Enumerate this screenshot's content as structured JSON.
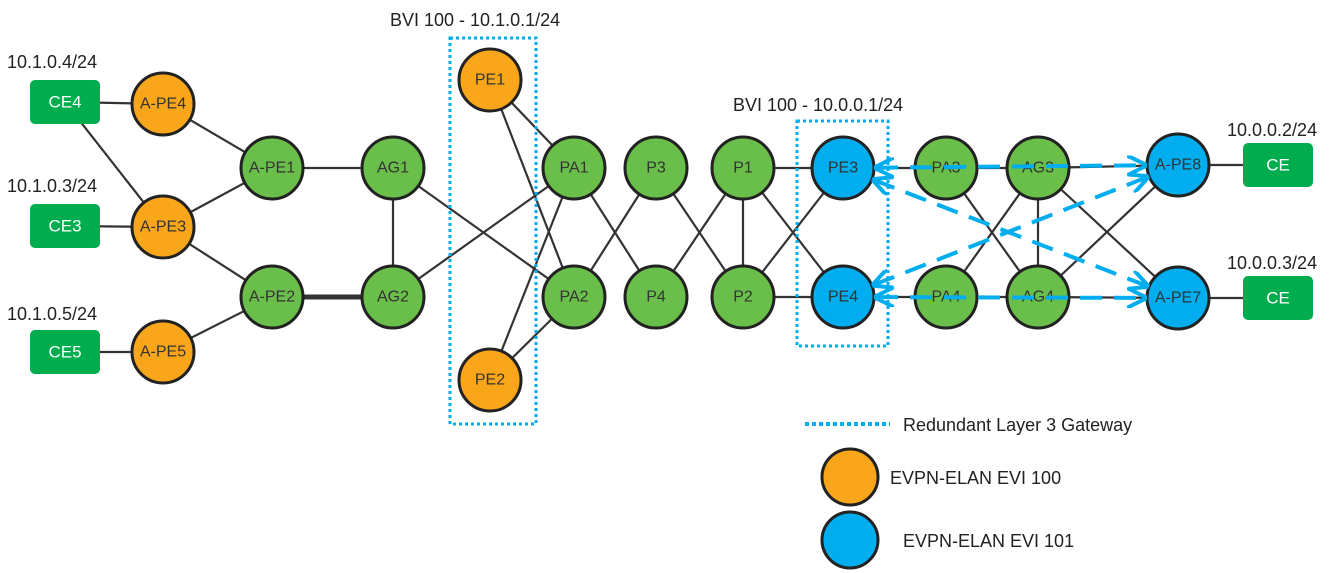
{
  "colors": {
    "evi100": "#FAA61A",
    "evi101": "#00AEEF",
    "transit": "#6ABF4B",
    "ce": "#00AD4E",
    "link": "#333333",
    "gateway": "#00AEEF"
  },
  "labels": {
    "ip_ce4": "10.1.0.4/24",
    "ip_ce3": "10.1.0.3/24",
    "ip_ce5": "10.1.0.5/24",
    "bvi_left": "BVI 100 - 10.1.0.1/24",
    "bvi_right": "BVI 100 - 10.0.0.1/24",
    "ip_ce_top": "10.0.0.2/24",
    "ip_ce_bottom": "10.0.0.3/24"
  },
  "nodes": [
    {
      "id": "CE4",
      "label": "CE4",
      "kind": "ce"
    },
    {
      "id": "CE3",
      "label": "CE3",
      "kind": "ce"
    },
    {
      "id": "CE5",
      "label": "CE5",
      "kind": "ce"
    },
    {
      "id": "APE4",
      "label": "A-PE4",
      "kind": "evi100"
    },
    {
      "id": "APE3",
      "label": "A-PE3",
      "kind": "evi100"
    },
    {
      "id": "APE5",
      "label": "A-PE5",
      "kind": "evi100"
    },
    {
      "id": "APE1",
      "label": "A-PE1",
      "kind": "transit"
    },
    {
      "id": "APE2",
      "label": "A-PE2",
      "kind": "transit"
    },
    {
      "id": "AG1",
      "label": "AG1",
      "kind": "transit"
    },
    {
      "id": "AG2",
      "label": "AG2",
      "kind": "transit"
    },
    {
      "id": "PE1",
      "label": "PE1",
      "kind": "evi100"
    },
    {
      "id": "PE2",
      "label": "PE2",
      "kind": "evi100"
    },
    {
      "id": "PA1",
      "label": "PA1",
      "kind": "transit"
    },
    {
      "id": "PA2",
      "label": "PA2",
      "kind": "transit"
    },
    {
      "id": "P3",
      "label": "P3",
      "kind": "transit"
    },
    {
      "id": "P4",
      "label": "P4",
      "kind": "transit"
    },
    {
      "id": "P1",
      "label": "P1",
      "kind": "transit"
    },
    {
      "id": "P2",
      "label": "P2",
      "kind": "transit"
    },
    {
      "id": "PE3",
      "label": "PE3",
      "kind": "evi101"
    },
    {
      "id": "PE4",
      "label": "PE4",
      "kind": "evi101"
    },
    {
      "id": "PA3",
      "label": "PA3",
      "kind": "transit"
    },
    {
      "id": "PA4",
      "label": "PA4",
      "kind": "transit"
    },
    {
      "id": "AG3",
      "label": "AG3",
      "kind": "transit"
    },
    {
      "id": "AG4",
      "label": "AG4",
      "kind": "transit"
    },
    {
      "id": "APE8",
      "label": "A-PE8",
      "kind": "evi101"
    },
    {
      "id": "APE7",
      "label": "A-PE7",
      "kind": "evi101"
    },
    {
      "id": "CER1",
      "label": "CE",
      "kind": "ce"
    },
    {
      "id": "CER2",
      "label": "CE",
      "kind": "ce"
    }
  ],
  "links": [
    [
      "CE4",
      "APE4"
    ],
    [
      "CE4",
      "APE3"
    ],
    [
      "CE3",
      "APE3"
    ],
    [
      "CE5",
      "APE5"
    ],
    [
      "APE4",
      "APE1"
    ],
    [
      "APE3",
      "APE1"
    ],
    [
      "APE3",
      "APE2"
    ],
    [
      "APE5",
      "APE2"
    ],
    [
      "APE1",
      "AG1"
    ],
    [
      "APE2",
      "AG2",
      "thick"
    ],
    [
      "AG1",
      "AG2"
    ],
    [
      "AG1",
      "PA2"
    ],
    [
      "AG2",
      "PA1"
    ],
    [
      "PE1",
      "PA1"
    ],
    [
      "PE1",
      "PA2"
    ],
    [
      "PE2",
      "PA1"
    ],
    [
      "PE2",
      "PA2"
    ],
    [
      "PA1",
      "P4"
    ],
    [
      "PA2",
      "P3"
    ],
    [
      "P3",
      "P2"
    ],
    [
      "P4",
      "P1"
    ],
    [
      "P1",
      "P2"
    ],
    [
      "P1",
      "PE3"
    ],
    [
      "P1",
      "PE4"
    ],
    [
      "P2",
      "PE3"
    ],
    [
      "P2",
      "PE4"
    ],
    [
      "PE3",
      "PA3"
    ],
    [
      "PE4",
      "PA4"
    ],
    [
      "PA3",
      "AG3"
    ],
    [
      "PA3",
      "AG4"
    ],
    [
      "PA4",
      "AG3"
    ],
    [
      "PA4",
      "AG4"
    ],
    [
      "AG3",
      "AG4"
    ],
    [
      "AG3",
      "APE8"
    ],
    [
      "AG3",
      "APE7"
    ],
    [
      "AG4",
      "APE8"
    ],
    [
      "AG4",
      "APE7"
    ],
    [
      "APE8",
      "CER1"
    ],
    [
      "APE7",
      "CER2"
    ]
  ],
  "evpn_paths": [
    [
      "PE3",
      "APE8"
    ],
    [
      "PE3",
      "APE7"
    ],
    [
      "PE4",
      "APE8"
    ],
    [
      "PE4",
      "APE7"
    ]
  ],
  "legend": {
    "gateway": "Redundant Layer 3 Gateway",
    "evi100": "EVPN-ELAN EVI 100",
    "evi101": "EVPN-ELAN EVI 101"
  }
}
